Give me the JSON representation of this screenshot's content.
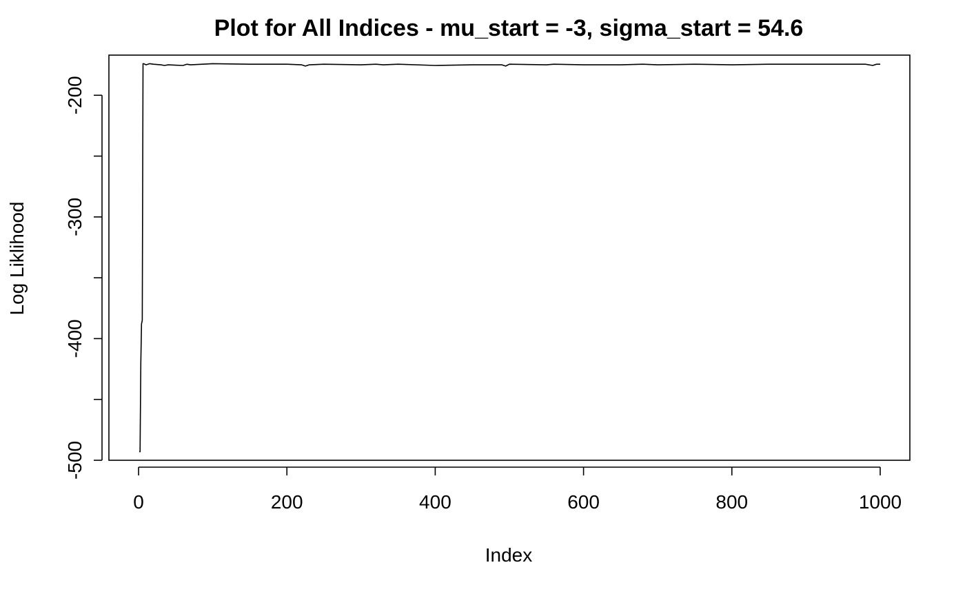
{
  "chart_data": {
    "type": "line",
    "title": "Plot for All Indices - mu_start = -3, sigma_start = 54.6",
    "xlabel": "Index",
    "ylabel": "Log Liklihood",
    "xlim": [
      -40,
      1040
    ],
    "ylim": [
      -500,
      -167
    ],
    "xticks": [
      0,
      200,
      400,
      600,
      800,
      1000
    ],
    "xtick_labels": [
      "0",
      "200",
      "400",
      "600",
      "800",
      "1000"
    ],
    "yticks": [
      -500,
      -450,
      -400,
      -350,
      -300,
      -250,
      -200
    ],
    "ytick_labels": [
      "-500",
      "",
      "-400",
      "",
      "-300",
      "",
      "-200"
    ],
    "grid": false,
    "legend": "none",
    "line_color": "#000000",
    "series": [
      {
        "x": [
          1,
          2,
          3,
          4,
          5,
          6,
          7,
          10,
          15,
          20,
          30,
          35,
          40,
          60,
          65,
          70,
          100,
          150,
          200,
          220,
          225,
          230,
          250,
          300,
          320,
          330,
          350,
          400,
          450,
          490,
          495,
          500,
          550,
          560,
          600,
          650,
          680,
          700,
          750,
          800,
          850,
          900,
          950,
          980,
          990,
          995,
          1000
        ],
        "y": [
          -493,
          -493,
          -420,
          -388,
          -385,
          -174,
          -174,
          -175,
          -174,
          -174.5,
          -175,
          -175.5,
          -175,
          -175.5,
          -174.5,
          -175,
          -174,
          -174.5,
          -174.5,
          -175,
          -176,
          -175,
          -174.5,
          -175,
          -174.5,
          -175,
          -174.5,
          -175.5,
          -175,
          -175,
          -176,
          -174.5,
          -175,
          -174.5,
          -175,
          -175,
          -174.5,
          -175,
          -174.5,
          -175,
          -174.5,
          -174.5,
          -174.5,
          -174.5,
          -175.5,
          -174.5,
          -174.5
        ]
      }
    ]
  }
}
